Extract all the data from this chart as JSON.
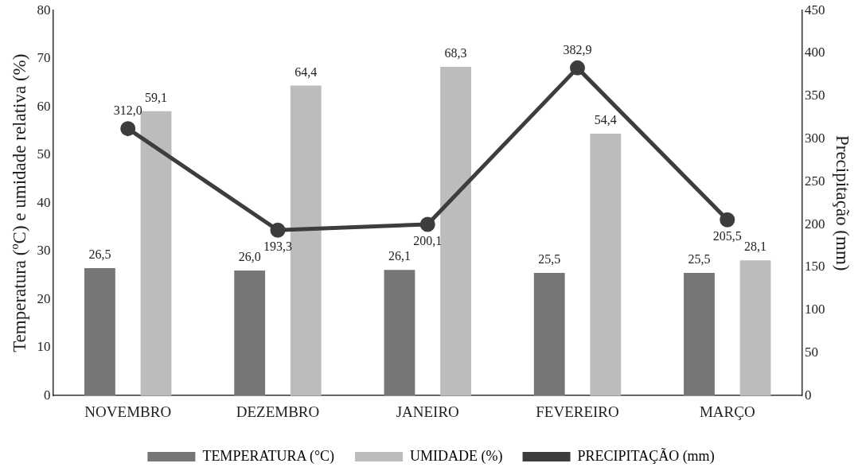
{
  "chart_data": {
    "type": "bar",
    "ylabel": "Temperatura (ºC) e umidade relativa (%)",
    "y2label": "Precipitação (mm)",
    "categories": [
      "NOVEMBRO",
      "DEZEMBRO",
      "JANEIRO",
      "FEVEREIRO",
      "MARÇO"
    ],
    "series": [
      {
        "name": "TEMPERATURA (°C)",
        "color": "#767678",
        "values": [
          26.5,
          26.0,
          26.1,
          25.5,
          25.5
        ],
        "value_labels": [
          "26,5",
          "26,0",
          "26,1",
          "25,5",
          "25,5"
        ]
      },
      {
        "name": "UMIDADE (%)",
        "color": "#bcbcbe",
        "values": [
          59.1,
          64.4,
          68.3,
          54.4,
          28.1
        ],
        "value_labels": [
          "59,1",
          "64,4",
          "68,3",
          "54,4",
          "28,1"
        ]
      },
      {
        "name": "PRECIPITAÇÃO (mm)",
        "type": "line",
        "axis": "y2",
        "color": "#3d3d3d",
        "marker": "circle",
        "values": [
          312.0,
          193.3,
          200.1,
          382.9,
          205.5
        ],
        "value_labels": [
          "312,0",
          "193,3",
          "200,1",
          "382,9",
          "205,5"
        ]
      }
    ],
    "ylim": [
      0,
      80
    ],
    "yticks": [
      0,
      10,
      20,
      30,
      40,
      50,
      60,
      70,
      80
    ],
    "y2lim": [
      0,
      450
    ],
    "y2ticks": [
      0,
      50,
      100,
      150,
      200,
      250,
      300,
      350,
      400,
      450
    ],
    "grid": false,
    "legend": "bottom"
  }
}
